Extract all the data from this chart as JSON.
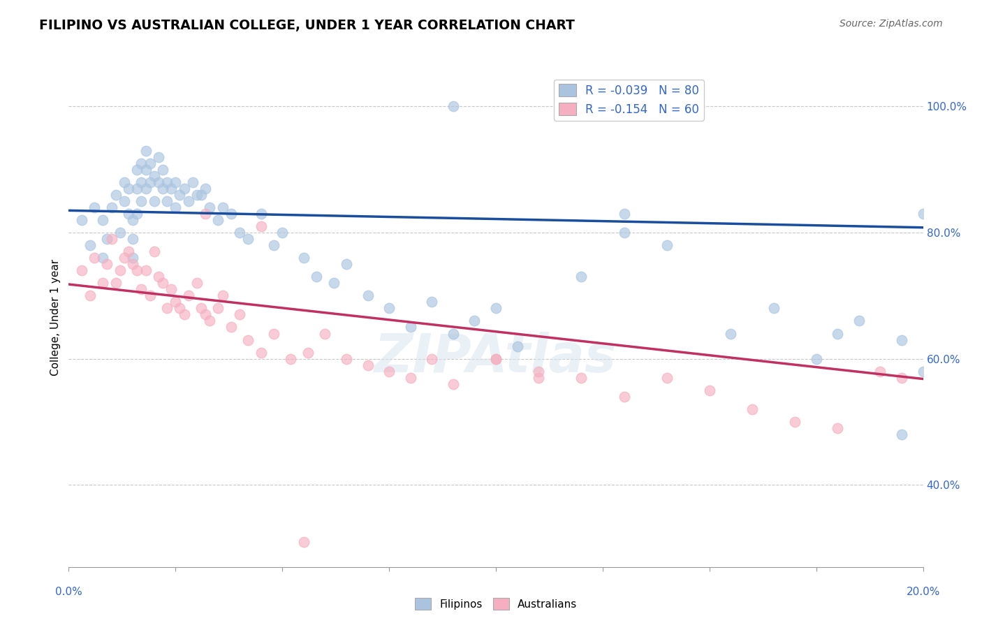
{
  "title": "FILIPINO VS AUSTRALIAN COLLEGE, UNDER 1 YEAR CORRELATION CHART",
  "source": "Source: ZipAtlas.com",
  "ylabel": "College, Under 1 year",
  "xrange": [
    0.0,
    0.2
  ],
  "yrange": [
    0.27,
    1.06
  ],
  "yticks_pct": [
    40,
    60,
    80,
    100
  ],
  "xticks_vals": [
    0.0,
    0.025,
    0.05,
    0.075,
    0.1,
    0.125,
    0.15,
    0.175,
    0.2
  ],
  "blue_R": "-0.039",
  "blue_N": "80",
  "pink_R": "-0.154",
  "pink_N": "60",
  "blue_fill": "#aac4e0",
  "pink_fill": "#f5afc0",
  "blue_line": "#1a4d9e",
  "pink_line": "#c03060",
  "watermark": "ZIPAtlas",
  "blue_scatter_x": [
    0.003,
    0.005,
    0.006,
    0.008,
    0.008,
    0.009,
    0.01,
    0.011,
    0.012,
    0.013,
    0.013,
    0.014,
    0.014,
    0.015,
    0.015,
    0.015,
    0.016,
    0.016,
    0.016,
    0.017,
    0.017,
    0.017,
    0.018,
    0.018,
    0.018,
    0.019,
    0.019,
    0.02,
    0.02,
    0.021,
    0.021,
    0.022,
    0.022,
    0.023,
    0.023,
    0.024,
    0.025,
    0.025,
    0.026,
    0.027,
    0.028,
    0.029,
    0.03,
    0.031,
    0.032,
    0.033,
    0.035,
    0.036,
    0.038,
    0.04,
    0.042,
    0.045,
    0.048,
    0.05,
    0.055,
    0.058,
    0.062,
    0.065,
    0.07,
    0.075,
    0.08,
    0.085,
    0.09,
    0.095,
    0.1,
    0.105,
    0.12,
    0.13,
    0.14,
    0.155,
    0.165,
    0.175,
    0.185,
    0.195,
    0.09,
    0.13,
    0.18,
    0.2,
    0.2,
    0.195
  ],
  "blue_scatter_y": [
    0.82,
    0.78,
    0.84,
    0.76,
    0.82,
    0.79,
    0.84,
    0.86,
    0.8,
    0.85,
    0.88,
    0.83,
    0.87,
    0.82,
    0.76,
    0.79,
    0.83,
    0.87,
    0.9,
    0.88,
    0.85,
    0.91,
    0.87,
    0.9,
    0.93,
    0.88,
    0.91,
    0.85,
    0.89,
    0.88,
    0.92,
    0.87,
    0.9,
    0.88,
    0.85,
    0.87,
    0.84,
    0.88,
    0.86,
    0.87,
    0.85,
    0.88,
    0.86,
    0.86,
    0.87,
    0.84,
    0.82,
    0.84,
    0.83,
    0.8,
    0.79,
    0.83,
    0.78,
    0.8,
    0.76,
    0.73,
    0.72,
    0.75,
    0.7,
    0.68,
    0.65,
    0.69,
    0.64,
    0.66,
    0.68,
    0.62,
    0.73,
    0.8,
    0.78,
    0.64,
    0.68,
    0.6,
    0.66,
    0.63,
    1.0,
    0.83,
    0.64,
    0.83,
    0.58,
    0.48
  ],
  "pink_scatter_x": [
    0.003,
    0.005,
    0.006,
    0.008,
    0.009,
    0.01,
    0.011,
    0.012,
    0.013,
    0.014,
    0.015,
    0.016,
    0.017,
    0.018,
    0.019,
    0.02,
    0.021,
    0.022,
    0.023,
    0.024,
    0.025,
    0.026,
    0.027,
    0.028,
    0.03,
    0.031,
    0.032,
    0.033,
    0.035,
    0.036,
    0.038,
    0.04,
    0.042,
    0.045,
    0.048,
    0.052,
    0.056,
    0.06,
    0.065,
    0.07,
    0.075,
    0.08,
    0.085,
    0.09,
    0.1,
    0.11,
    0.12,
    0.13,
    0.14,
    0.15,
    0.16,
    0.17,
    0.18,
    0.19,
    0.195,
    0.1,
    0.11,
    0.032,
    0.045,
    0.055
  ],
  "pink_scatter_y": [
    0.74,
    0.7,
    0.76,
    0.72,
    0.75,
    0.79,
    0.72,
    0.74,
    0.76,
    0.77,
    0.75,
    0.74,
    0.71,
    0.74,
    0.7,
    0.77,
    0.73,
    0.72,
    0.68,
    0.71,
    0.69,
    0.68,
    0.67,
    0.7,
    0.72,
    0.68,
    0.67,
    0.66,
    0.68,
    0.7,
    0.65,
    0.67,
    0.63,
    0.61,
    0.64,
    0.6,
    0.61,
    0.64,
    0.6,
    0.59,
    0.58,
    0.57,
    0.6,
    0.56,
    0.6,
    0.57,
    0.57,
    0.54,
    0.57,
    0.55,
    0.52,
    0.5,
    0.49,
    0.58,
    0.57,
    0.6,
    0.58,
    0.83,
    0.81,
    0.31
  ],
  "blue_trend_x": [
    0.0,
    0.2
  ],
  "blue_trend_y": [
    0.835,
    0.808
  ],
  "pink_trend_x": [
    0.0,
    0.2
  ],
  "pink_trend_y": [
    0.718,
    0.568
  ]
}
